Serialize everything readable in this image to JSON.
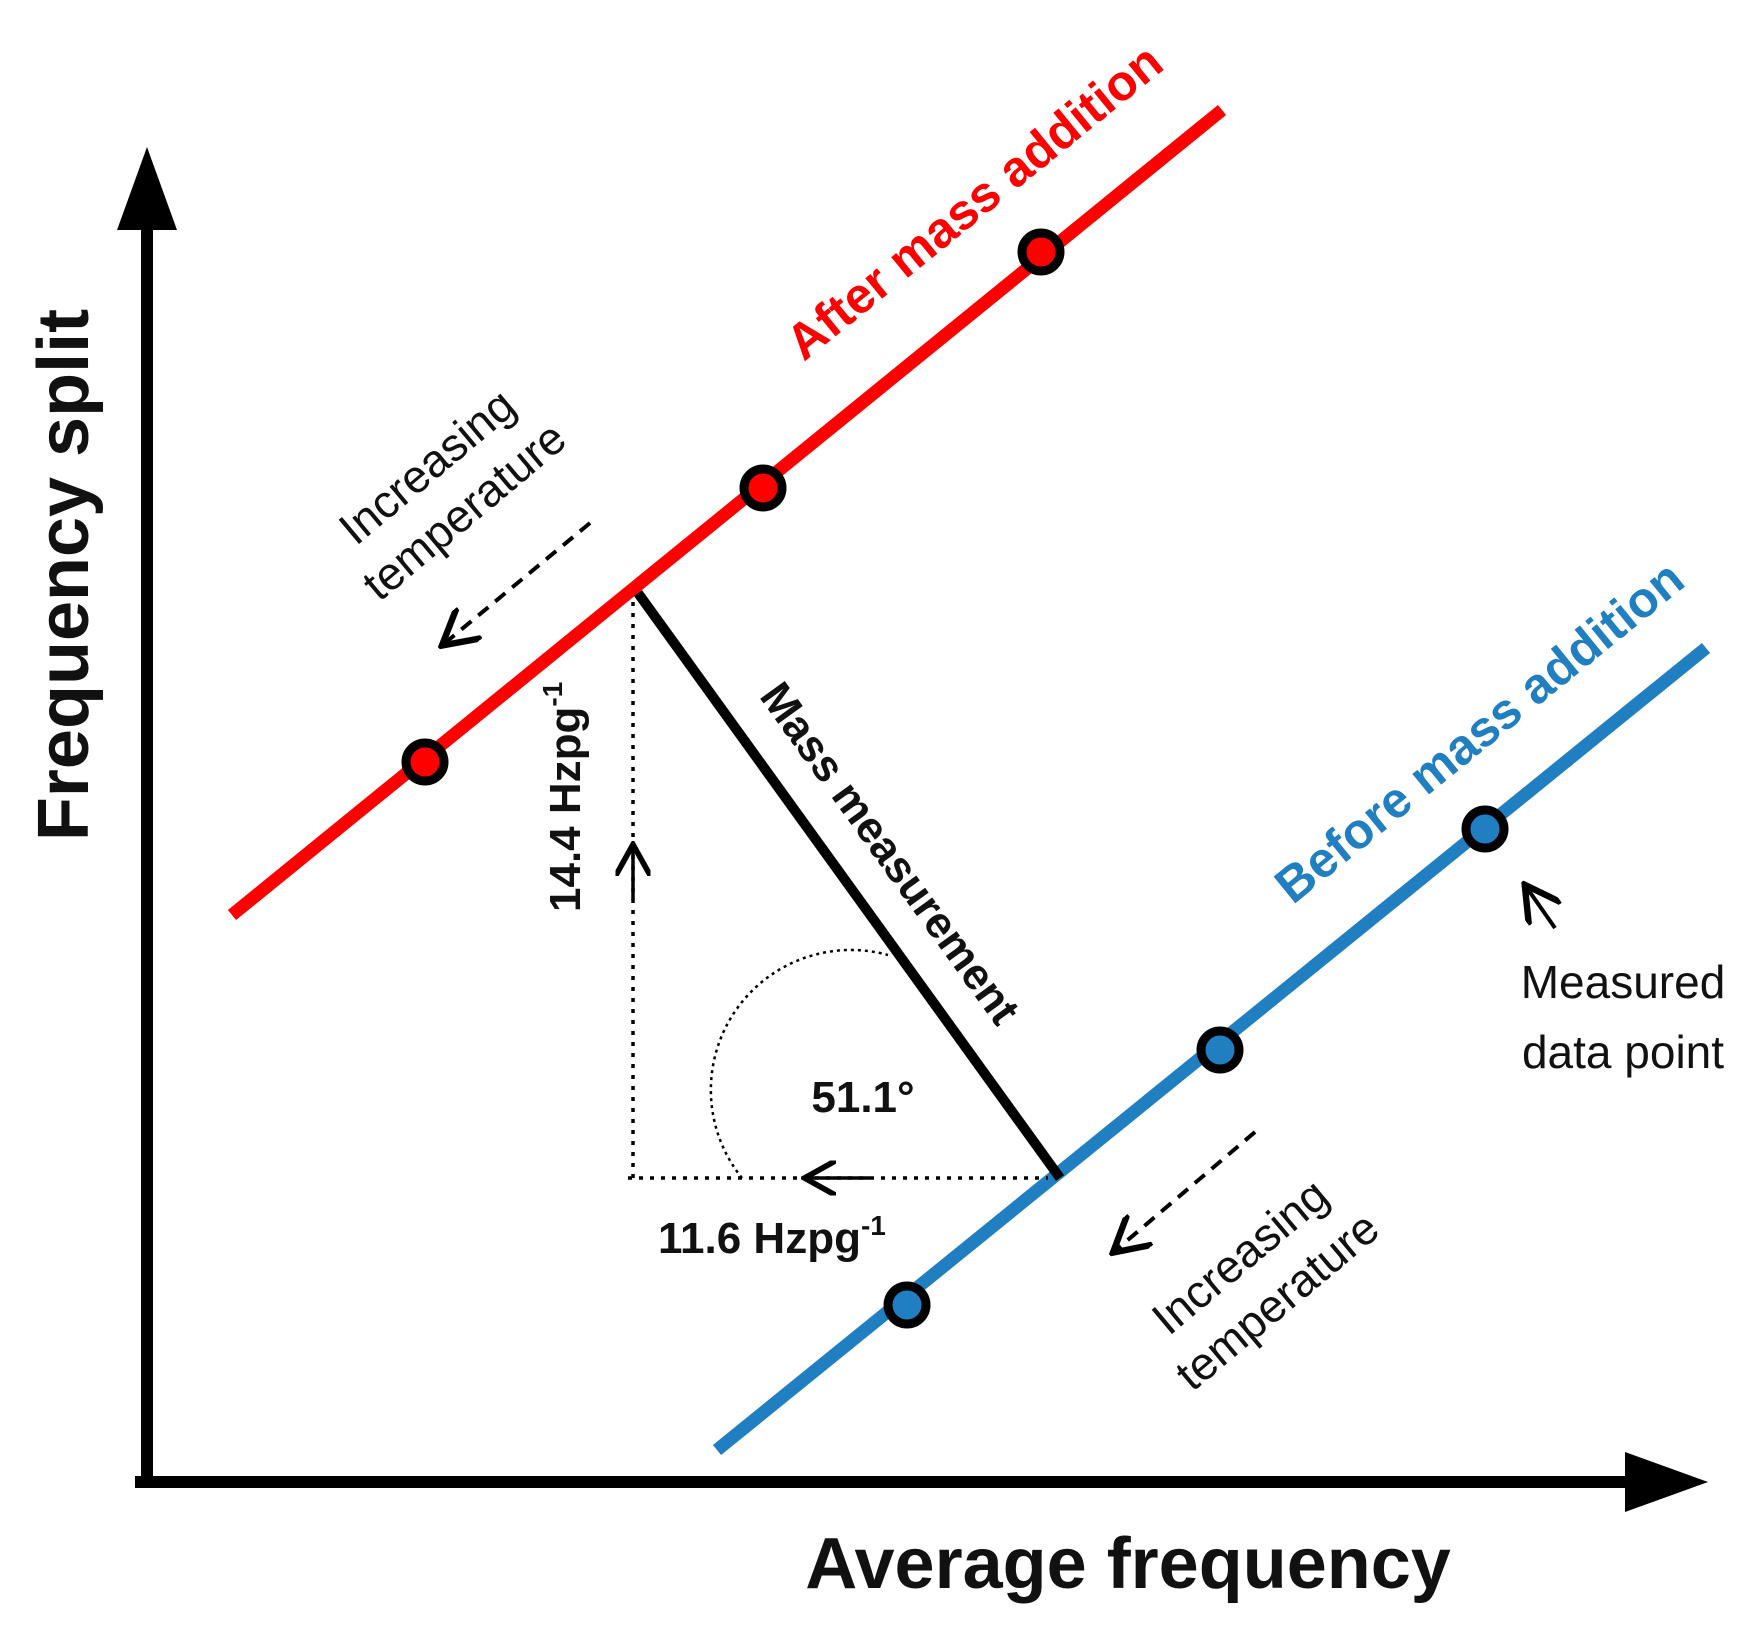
{
  "axes": {
    "x_title": "Average frequency",
    "y_title": "Frequency split"
  },
  "lines": {
    "after": {
      "label": "After mass addition",
      "color": "#ff0000"
    },
    "before": {
      "label": "Before mass addition",
      "color": "#1f7fc0"
    }
  },
  "annotations": {
    "increasing_temperature_top": {
      "line1": "Increasing",
      "line2": "temperature"
    },
    "increasing_temperature_bottom": {
      "line1": "Increasing",
      "line2": "temperature"
    },
    "mass_measurement": "Mass measurement",
    "vertical_component": {
      "value": "14.4 Hzpg",
      "exponent": "-1"
    },
    "horizontal_component": {
      "value": "11.6 Hzpg",
      "exponent": "-1"
    },
    "angle": "51.1°",
    "measured_point": {
      "line1": "Measured",
      "line2": "data point"
    }
  },
  "colors": {
    "axis": "#000000",
    "point_stroke": "#000000"
  }
}
